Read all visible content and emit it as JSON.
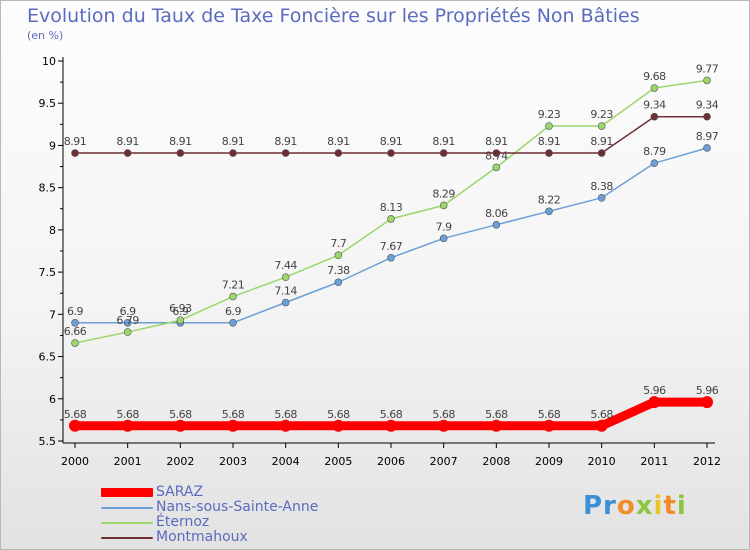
{
  "chart_data": {
    "type": "line",
    "title": "Evolution du Taux de Taxe Foncière sur les Propriétés Non Bâties",
    "subtitle": "(en %)",
    "x": [
      "2000",
      "2001",
      "2002",
      "2003",
      "2004",
      "2005",
      "2006",
      "2007",
      "2008",
      "2009",
      "2010",
      "2011",
      "2012"
    ],
    "ylim": [
      5.5,
      10
    ],
    "yticks": [
      "5.5",
      "6",
      "6.5",
      "7",
      "7.5",
      "8",
      "8.5",
      "9",
      "9.5",
      "10"
    ],
    "grid": false,
    "legend_position": "bottom-left",
    "series": [
      {
        "name": "SARAZ",
        "color": "#ff0000",
        "values": [
          5.68,
          5.68,
          5.68,
          5.68,
          5.68,
          5.68,
          5.68,
          5.68,
          5.68,
          5.68,
          5.68,
          5.96,
          5.96
        ],
        "labels": [
          "5.68",
          "5.68",
          "5.68",
          "5.68",
          "5.68",
          "5.68",
          "5.68",
          "5.68",
          "5.68",
          "5.68",
          "5.68",
          "5.96",
          "5.96"
        ]
      },
      {
        "name": "Nans-sous-Sainte-Anne",
        "color": "#6a9fd8",
        "values": [
          6.9,
          6.9,
          6.9,
          6.9,
          7.14,
          7.38,
          7.67,
          7.9,
          8.06,
          8.22,
          8.38,
          8.79,
          8.97
        ],
        "labels": [
          "6.9",
          "6.9",
          "6.9",
          "6.9",
          "7.14",
          "7.38",
          "7.67",
          "7.9",
          "8.06",
          "8.22",
          "8.38",
          "8.79",
          "8.97"
        ]
      },
      {
        "name": "Éternoz",
        "color": "#9ad66b",
        "values": [
          6.66,
          6.79,
          6.93,
          7.21,
          7.44,
          7.7,
          8.13,
          8.29,
          8.74,
          9.23,
          9.23,
          9.68,
          9.77
        ],
        "labels": [
          "6.66",
          "6.79",
          "6.93",
          "7.21",
          "7.44",
          "7.7",
          "8.13",
          "8.29",
          "8.74",
          "9.23",
          "9.23",
          "9.68",
          "9.77"
        ]
      },
      {
        "name": "Montmahoux",
        "color": "#6e2e33",
        "values": [
          8.91,
          8.91,
          8.91,
          8.91,
          8.91,
          8.91,
          8.91,
          8.91,
          8.91,
          8.91,
          8.91,
          9.34,
          9.34
        ],
        "labels": [
          "8.91",
          "8.91",
          "8.91",
          "8.91",
          "8.91",
          "8.91",
          "8.91",
          "8.91",
          "8.91",
          "8.91",
          "8.91",
          "9.34",
          "9.34"
        ]
      }
    ]
  },
  "logo_text": "Proxiti"
}
